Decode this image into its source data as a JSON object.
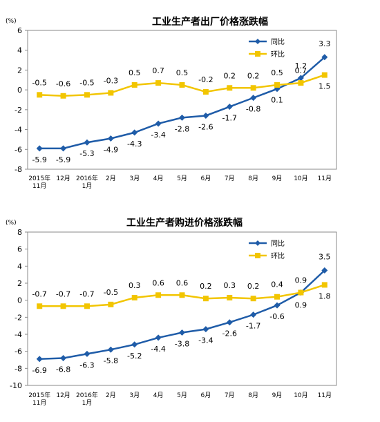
{
  "chart_data": [
    {
      "type": "line",
      "title": "工业生产者出厂价格涨跌幅",
      "unit": "(%)",
      "ylim": [
        -8,
        6
      ],
      "yticks": [
        -8,
        -6,
        -4,
        -2,
        0,
        2,
        4,
        6
      ],
      "categories": [
        "2015年|11月",
        "12月",
        "2016年|1月",
        "2月",
        "3月",
        "4月",
        "5月",
        "6月",
        "7月",
        "8月",
        "9月",
        "10月",
        "11月"
      ],
      "legend_position": "top-right",
      "grid": false,
      "series": [
        {
          "name": "同比",
          "color": "#1f5ca8",
          "marker": "diamond",
          "values": [
            -5.9,
            -5.9,
            -5.3,
            -4.9,
            -4.3,
            -3.4,
            -2.8,
            -2.6,
            -1.7,
            -0.8,
            0.1,
            1.2,
            3.3
          ]
        },
        {
          "name": "环比",
          "color": "#f2c500",
          "marker": "square",
          "values": [
            -0.5,
            -0.6,
            -0.5,
            -0.3,
            0.5,
            0.7,
            0.5,
            -0.2,
            0.2,
            0.2,
            0.5,
            0.7,
            1.5
          ]
        }
      ]
    },
    {
      "type": "line",
      "title": "工业生产者购进价格涨跌幅",
      "unit": "(%)",
      "ylim": [
        -10,
        8
      ],
      "yticks": [
        -10,
        -8,
        -6,
        -4,
        -2,
        0,
        2,
        4,
        6,
        8
      ],
      "categories": [
        "2015年|11月",
        "12月",
        "2016年|1月",
        "2月",
        "3月",
        "4月",
        "5月",
        "6月",
        "7月",
        "8月",
        "9月",
        "10月",
        "11月"
      ],
      "legend_position": "top-right",
      "grid": false,
      "series": [
        {
          "name": "同比",
          "color": "#1f5ca8",
          "marker": "diamond",
          "values": [
            -6.9,
            -6.8,
            -6.3,
            -5.8,
            -5.2,
            -4.4,
            -3.8,
            -3.4,
            -2.6,
            -1.7,
            -0.6,
            0.9,
            3.5
          ]
        },
        {
          "name": "环比",
          "color": "#f2c500",
          "marker": "square",
          "values": [
            -0.7,
            -0.7,
            -0.7,
            -0.5,
            0.3,
            0.6,
            0.6,
            0.2,
            0.3,
            0.2,
            0.4,
            0.9,
            1.8
          ]
        }
      ]
    }
  ]
}
